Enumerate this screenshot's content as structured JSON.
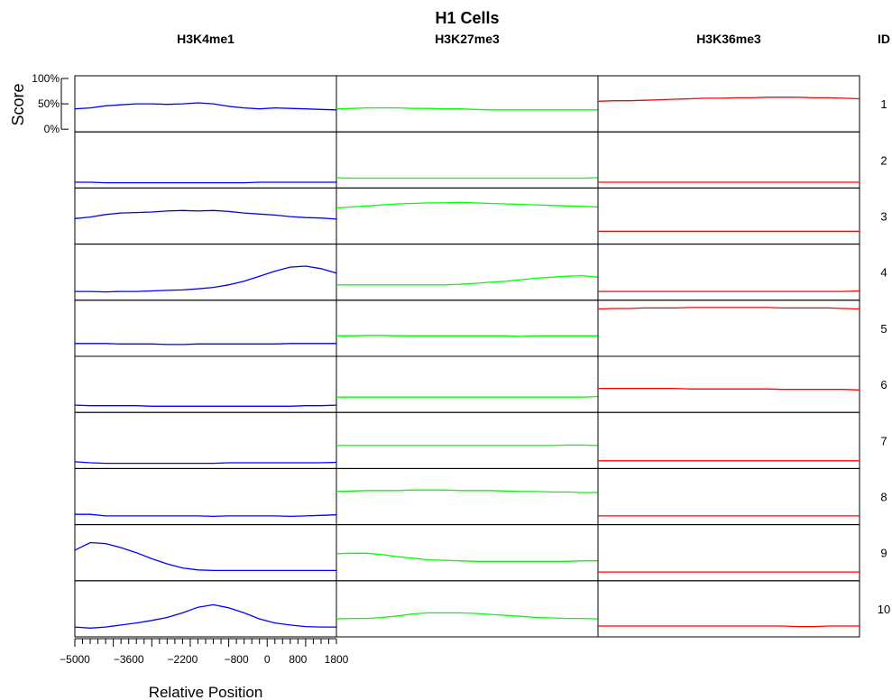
{
  "chart_data": {
    "type": "line",
    "title": "H1 Cells",
    "xlabel": "Relative Position",
    "ylabel": "Score",
    "xlim": [
      -5000,
      1800
    ],
    "ylim": [
      0,
      100
    ],
    "x_ticks": [
      -5000,
      -3600,
      -2200,
      -800,
      0,
      800,
      1800
    ],
    "x_tick_labels": [
      "−5000",
      "−3600",
      "−2200",
      "−800",
      "0",
      "800",
      "1800"
    ],
    "y_ticks": [
      0,
      50,
      100
    ],
    "y_tick_labels": [
      "0%",
      "50%",
      "100%"
    ],
    "id_label": "ID",
    "columns": [
      {
        "name": "H3K4me1",
        "color": "#0000ff"
      },
      {
        "name": "H3K27me3",
        "color": "#00ff00"
      },
      {
        "name": "H3K36me3",
        "color": "#ff0000"
      }
    ],
    "row_ids": [
      "1",
      "2",
      "3",
      "4",
      "5",
      "6",
      "7",
      "8",
      "9",
      "10"
    ],
    "x": [
      -5000,
      -4600,
      -4200,
      -3800,
      -3400,
      -3000,
      -2600,
      -2200,
      -1800,
      -1400,
      -1000,
      -600,
      -200,
      200,
      600,
      1000,
      1400,
      1800
    ],
    "values": [
      [
        [
          40,
          42,
          46,
          48,
          50,
          50,
          49,
          50,
          52,
          50,
          45,
          42,
          40,
          42,
          41,
          40,
          39,
          38
        ],
        [
          40,
          41,
          42,
          42,
          42,
          41,
          41,
          40,
          40,
          39,
          38,
          38,
          38,
          38,
          38,
          38,
          38,
          38
        ],
        [
          55,
          56,
          56,
          57,
          58,
          59,
          60,
          61,
          61,
          62,
          62,
          63,
          63,
          63,
          62,
          62,
          61,
          60
        ]
      ],
      [
        [
          6,
          6,
          5,
          5,
          5,
          5,
          5,
          5,
          5,
          5,
          5,
          5,
          6,
          6,
          6,
          6,
          6,
          6
        ],
        [
          15,
          14,
          14,
          14,
          14,
          14,
          14,
          14,
          14,
          14,
          14,
          14,
          14,
          14,
          14,
          14,
          14,
          15
        ],
        [
          6,
          6,
          6,
          6,
          6,
          6,
          6,
          6,
          6,
          6,
          6,
          6,
          6,
          6,
          6,
          6,
          6,
          6
        ]
      ],
      [
        [
          45,
          48,
          53,
          56,
          57,
          58,
          60,
          61,
          60,
          61,
          59,
          56,
          54,
          52,
          49,
          47,
          46,
          44
        ],
        [
          66,
          68,
          70,
          72,
          74,
          75,
          76,
          76,
          77,
          76,
          75,
          74,
          73,
          72,
          71,
          70,
          69,
          68
        ],
        [
          20,
          20,
          20,
          20,
          20,
          20,
          20,
          20,
          20,
          20,
          20,
          20,
          20,
          20,
          20,
          20,
          20,
          20
        ]
      ],
      [
        [
          12,
          12,
          11,
          12,
          12,
          13,
          14,
          15,
          17,
          20,
          25,
          32,
          42,
          52,
          60,
          62,
          57,
          48
        ],
        [
          25,
          25,
          25,
          25,
          25,
          25,
          25,
          25,
          26,
          28,
          30,
          32,
          35,
          38,
          40,
          42,
          43,
          40
        ],
        [
          12,
          12,
          12,
          12,
          12,
          12,
          12,
          12,
          12,
          12,
          12,
          12,
          12,
          12,
          12,
          12,
          12,
          13
        ]
      ],
      [
        [
          20,
          20,
          20,
          19,
          19,
          19,
          18,
          18,
          19,
          19,
          19,
          19,
          19,
          19,
          20,
          20,
          20,
          20
        ],
        [
          35,
          35,
          36,
          36,
          35,
          35,
          35,
          35,
          35,
          35,
          35,
          35,
          34,
          35,
          35,
          35,
          35,
          35
        ],
        [
          88,
          89,
          89,
          90,
          90,
          90,
          91,
          91,
          91,
          91,
          91,
          91,
          90,
          90,
          90,
          90,
          89,
          88
        ]
      ],
      [
        [
          9,
          8,
          8,
          8,
          8,
          7,
          7,
          7,
          7,
          7,
          7,
          7,
          7,
          7,
          7,
          8,
          8,
          9
        ],
        [
          25,
          25,
          25,
          25,
          25,
          25,
          25,
          25,
          25,
          25,
          25,
          25,
          25,
          25,
          25,
          25,
          25,
          26
        ],
        [
          42,
          42,
          42,
          42,
          42,
          42,
          41,
          41,
          41,
          41,
          41,
          41,
          40,
          40,
          40,
          40,
          40,
          39
        ]
      ],
      [
        [
          8,
          6,
          5,
          5,
          5,
          5,
          5,
          5,
          5,
          5,
          6,
          6,
          6,
          6,
          6,
          6,
          6,
          7
        ],
        [
          40,
          40,
          40,
          40,
          40,
          40,
          40,
          40,
          40,
          40,
          40,
          40,
          40,
          40,
          40,
          41,
          41,
          40
        ],
        [
          10,
          10,
          10,
          10,
          10,
          10,
          10,
          10,
          10,
          10,
          10,
          10,
          10,
          10,
          10,
          10,
          10,
          10
        ]
      ],
      [
        [
          15,
          15,
          12,
          12,
          12,
          12,
          12,
          12,
          12,
          11,
          12,
          12,
          12,
          12,
          11,
          12,
          13,
          14
        ],
        [
          60,
          61,
          62,
          62,
          62,
          63,
          63,
          63,
          62,
          62,
          62,
          61,
          60,
          60,
          59,
          59,
          58,
          58
        ],
        [
          12,
          12,
          12,
          12,
          12,
          12,
          12,
          12,
          12,
          12,
          12,
          12,
          12,
          12,
          12,
          12,
          12,
          12
        ]
      ],
      [
        [
          55,
          70,
          68,
          60,
          50,
          38,
          28,
          20,
          16,
          15,
          15,
          15,
          15,
          15,
          15,
          15,
          15,
          15
        ],
        [
          48,
          49,
          49,
          46,
          42,
          39,
          36,
          35,
          34,
          33,
          33,
          33,
          33,
          33,
          33,
          33,
          34,
          34
        ],
        [
          12,
          12,
          12,
          12,
          12,
          12,
          12,
          12,
          12,
          12,
          12,
          12,
          12,
          12,
          12,
          12,
          12,
          12
        ]
      ],
      [
        [
          14,
          12,
          14,
          18,
          22,
          27,
          33,
          42,
          53,
          58,
          52,
          42,
          30,
          22,
          18,
          15,
          14,
          14
        ],
        [
          30,
          31,
          31,
          33,
          36,
          40,
          42,
          42,
          42,
          41,
          39,
          37,
          35,
          33,
          32,
          31,
          31,
          30
        ],
        [
          16,
          16,
          16,
          16,
          16,
          16,
          16,
          16,
          16,
          16,
          16,
          16,
          16,
          15,
          15,
          16,
          16,
          16
        ]
      ]
    ]
  }
}
